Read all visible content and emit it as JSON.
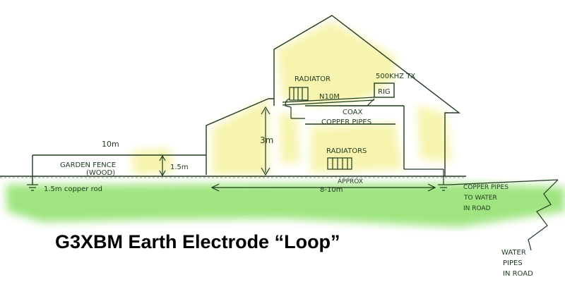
{
  "colors": {
    "ink": "#1f3a1f",
    "wall_glow": "#f4f29a",
    "ground": "#8fe06a",
    "title": "#000000"
  },
  "labels": {
    "radiator_top": "RADIATOR",
    "tx": "500KHZ TX",
    "rig": "RIG",
    "n10m": "N10M",
    "coax": "COAX",
    "copper_pipes": "COPPER PIPES",
    "height_3m": "3m",
    "fence_10m": "10m",
    "garden_fence": "GARDEN FENCE",
    "wood": "(WOOD)",
    "fence_height": "1.5m",
    "radiators": "RADIATORS",
    "approx": "APPROX",
    "distance": "8-10m",
    "copper_rod": "1.5m copper rod",
    "pipes_to_water_1": "COPPER PIPES",
    "pipes_to_water_2": "TO WATER",
    "pipes_to_water_3": "IN ROAD",
    "water_pipes_1": "WATER",
    "water_pipes_2": "PIPES",
    "water_pipes_3": "IN ROAD"
  },
  "title": "G3XBM Earth Electrode “Loop”"
}
